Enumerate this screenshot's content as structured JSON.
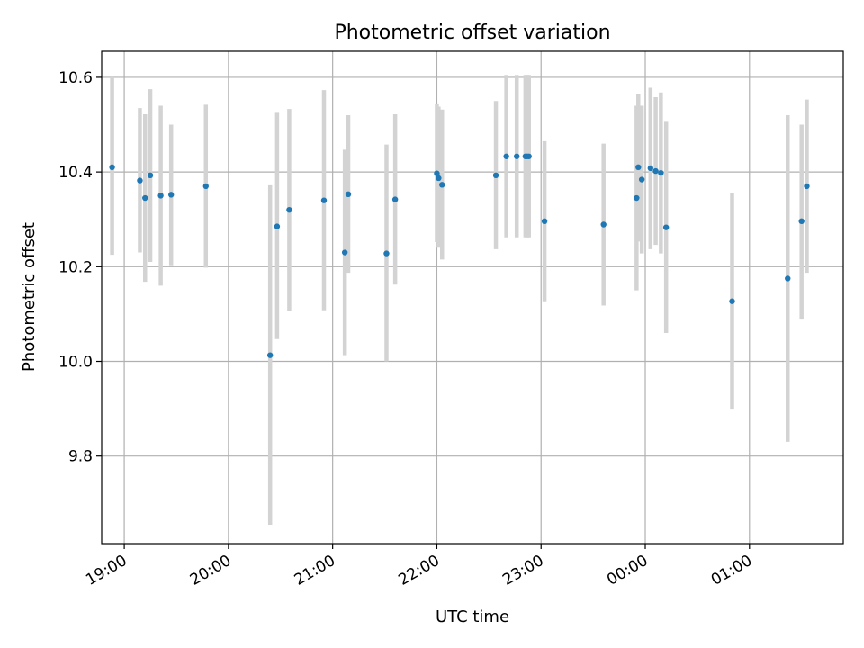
{
  "chart_data": {
    "type": "scatter",
    "title": "Photometric offset variation",
    "xlabel": "UTC time",
    "ylabel": "Photometric offset",
    "x_ticks": [
      "19:00",
      "20:00",
      "21:00",
      "22:00",
      "23:00",
      "00:00",
      "01:00"
    ],
    "y_ticks": [
      "9.8",
      "10.0",
      "10.2",
      "10.4",
      "10.6"
    ],
    "xlim": [
      "18:47",
      "01:54"
    ],
    "ylim": [
      9.615,
      10.655
    ],
    "grid": true,
    "points": [
      {
        "x": "18:53",
        "y": 10.41,
        "err_low": 10.225,
        "err_high": 10.6
      },
      {
        "x": "19:09",
        "y": 10.382,
        "err_low": 10.23,
        "err_high": 10.535
      },
      {
        "x": "19:12",
        "y": 10.345,
        "err_low": 10.168,
        "err_high": 10.522
      },
      {
        "x": "19:15",
        "y": 10.393,
        "err_low": 10.21,
        "err_high": 10.575
      },
      {
        "x": "19:21",
        "y": 10.35,
        "err_low": 10.16,
        "err_high": 10.54
      },
      {
        "x": "19:27",
        "y": 10.352,
        "err_low": 10.203,
        "err_high": 10.5
      },
      {
        "x": "19:47",
        "y": 10.37,
        "err_low": 10.198,
        "err_high": 10.542
      },
      {
        "x": "20:24",
        "y": 10.013,
        "err_low": 9.655,
        "err_high": 10.372
      },
      {
        "x": "20:28",
        "y": 10.285,
        "err_low": 10.047,
        "err_high": 10.525
      },
      {
        "x": "20:35",
        "y": 10.32,
        "err_low": 10.107,
        "err_high": 10.533
      },
      {
        "x": "20:55",
        "y": 10.34,
        "err_low": 10.108,
        "err_high": 10.573
      },
      {
        "x": "21:07",
        "y": 10.23,
        "err_low": 10.013,
        "err_high": 10.447
      },
      {
        "x": "21:09",
        "y": 10.353,
        "err_low": 10.187,
        "err_high": 10.52
      },
      {
        "x": "21:31",
        "y": 10.228,
        "err_low": 10.0,
        "err_high": 10.458
      },
      {
        "x": "21:36",
        "y": 10.342,
        "err_low": 10.162,
        "err_high": 10.522
      },
      {
        "x": "22:00",
        "y": 10.397,
        "err_low": 10.252,
        "err_high": 10.543
      },
      {
        "x": "22:01",
        "y": 10.387,
        "err_low": 10.24,
        "err_high": 10.538
      },
      {
        "x": "22:03",
        "y": 10.373,
        "err_low": 10.215,
        "err_high": 10.532
      },
      {
        "x": "22:34",
        "y": 10.393,
        "err_low": 10.237,
        "err_high": 10.55
      },
      {
        "x": "22:40",
        "y": 10.433,
        "err_low": 10.262,
        "err_high": 10.605
      },
      {
        "x": "22:46",
        "y": 10.433,
        "err_low": 10.262,
        "err_high": 10.605
      },
      {
        "x": "22:51",
        "y": 10.433,
        "err_low": 10.262,
        "err_high": 10.605
      },
      {
        "x": "22:52",
        "y": 10.433,
        "err_low": 10.262,
        "err_high": 10.605
      },
      {
        "x": "22:53",
        "y": 10.433,
        "err_low": 10.262,
        "err_high": 10.605
      },
      {
        "x": "23:02",
        "y": 10.296,
        "err_low": 10.127,
        "err_high": 10.465
      },
      {
        "x": "23:36",
        "y": 10.289,
        "err_low": 10.118,
        "err_high": 10.46
      },
      {
        "x": "23:55",
        "y": 10.345,
        "err_low": 10.15,
        "err_high": 10.54
      },
      {
        "x": "23:56",
        "y": 10.41,
        "err_low": 10.253,
        "err_high": 10.565
      },
      {
        "x": "23:58",
        "y": 10.384,
        "err_low": 10.228,
        "err_high": 10.54
      },
      {
        "x": "00:03",
        "y": 10.408,
        "err_low": 10.237,
        "err_high": 10.578
      },
      {
        "x": "00:06",
        "y": 10.402,
        "err_low": 10.246,
        "err_high": 10.558
      },
      {
        "x": "00:09",
        "y": 10.398,
        "err_low": 10.228,
        "err_high": 10.568
      },
      {
        "x": "00:12",
        "y": 10.283,
        "err_low": 10.06,
        "err_high": 10.506
      },
      {
        "x": "00:50",
        "y": 10.127,
        "err_low": 9.9,
        "err_high": 10.355
      },
      {
        "x": "01:22",
        "y": 10.175,
        "err_low": 9.83,
        "err_high": 10.52
      },
      {
        "x": "01:30",
        "y": 10.296,
        "err_low": 10.09,
        "err_high": 10.5
      },
      {
        "x": "01:33",
        "y": 10.37,
        "err_low": 10.187,
        "err_high": 10.553
      }
    ],
    "colors": {
      "marker": "#1f77b4",
      "errorbar": "#d3d3d3",
      "grid": "#b0b0b0",
      "axes": "#000000"
    }
  }
}
